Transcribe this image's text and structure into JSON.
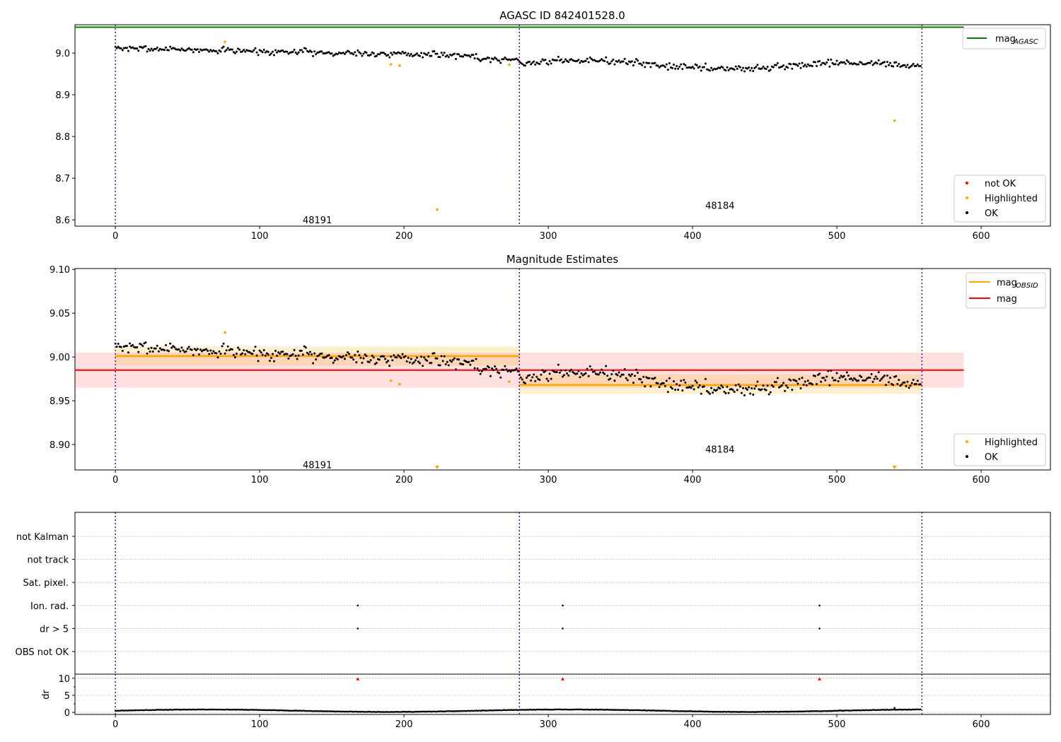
{
  "chart_data": [
    {
      "type": "scatter",
      "title": "AGASC ID 842401528.0",
      "xlim": [
        -28,
        648
      ],
      "ylim": [
        8.585,
        9.068
      ],
      "xticks": [
        "0",
        "100",
        "200",
        "300",
        "400",
        "500",
        "600"
      ],
      "yticks": [
        "8.6",
        "8.7",
        "8.8",
        "8.9",
        "9.0"
      ],
      "obs_boundaries": [
        0,
        280,
        559
      ],
      "obs_labels": [
        {
          "text": "48191",
          "x": 139,
          "y": 8.6
        },
        {
          "text": "48184",
          "x": 418,
          "y": 8.635
        }
      ],
      "mag_agasc": 9.062,
      "legend_top": [
        {
          "name": "mag",
          "sub": "AGASC",
          "color": "#008000"
        }
      ],
      "legend_bottom": [
        {
          "name": "not OK",
          "color": "#ff0000"
        },
        {
          "name": "Highlighted",
          "color": "#ffa500"
        },
        {
          "name": "OK",
          "color": "#000000"
        }
      ],
      "highlighted": [
        [
          76,
          9.027
        ],
        [
          191,
          8.973
        ],
        [
          197,
          8.97
        ],
        [
          223,
          8.625
        ],
        [
          273,
          8.972
        ],
        [
          540,
          8.838
        ]
      ]
    },
    {
      "type": "scatter",
      "title": "Magnitude Estimates",
      "xlim": [
        -28,
        648
      ],
      "ylim": [
        8.871,
        9.101
      ],
      "xticks": [
        "0",
        "100",
        "200",
        "300",
        "400",
        "500",
        "600"
      ],
      "yticks": [
        "8.90",
        "8.95",
        "9.00",
        "9.05",
        "9.10"
      ],
      "obs_labels": [
        {
          "text": "48191",
          "x": 139,
          "y": 8.877
        },
        {
          "text": "48184",
          "x": 418,
          "y": 8.895
        }
      ],
      "mag": 8.985,
      "mag_band": [
        8.965,
        9.005
      ],
      "mag_band_x": [
        -28,
        588
      ],
      "mag_obsid": [
        {
          "x0": 0,
          "x1": 280,
          "value": 9.001,
          "band": [
            8.99,
            9.012
          ]
        },
        {
          "x0": 280,
          "x1": 559,
          "value": 8.968,
          "band": [
            8.958,
            8.98
          ]
        }
      ],
      "legend_top": [
        {
          "name": "mag",
          "sub": "OBSID",
          "color": "#ffa500"
        },
        {
          "name": "mag",
          "sub": "",
          "color": "#ff0000"
        }
      ],
      "legend_bottom": [
        {
          "name": "Highlighted",
          "color": "#ffa500"
        },
        {
          "name": "OK",
          "color": "#000000"
        }
      ],
      "highlighted": [
        [
          76,
          9.028
        ],
        [
          191,
          8.973
        ],
        [
          197,
          8.969
        ],
        [
          273,
          8.972
        ]
      ],
      "below_range_markers": [
        223,
        540
      ]
    },
    {
      "type": "scatter",
      "flags": [
        "not Kalman",
        "not track",
        "Sat. pixel.",
        "Ion. rad.",
        "dr > 5",
        "OBS not OK"
      ],
      "flag_points": [
        {
          "flag": "Ion. rad.",
          "x": [
            168,
            310,
            488
          ]
        },
        {
          "flag": "dr > 5",
          "x": [
            168,
            310,
            488
          ]
        }
      ]
    },
    {
      "type": "scatter",
      "ylabel": "dr",
      "xlim": [
        -28,
        648
      ],
      "ylim": [
        -0.6,
        11.2
      ],
      "xticks": [
        "0",
        "100",
        "200",
        "300",
        "400",
        "500",
        "600"
      ],
      "yticks": [
        "0",
        "5",
        "10"
      ],
      "high_dr_markers": [
        168,
        310,
        488
      ],
      "outliers": [
        [
          540,
          1.3
        ]
      ]
    }
  ]
}
